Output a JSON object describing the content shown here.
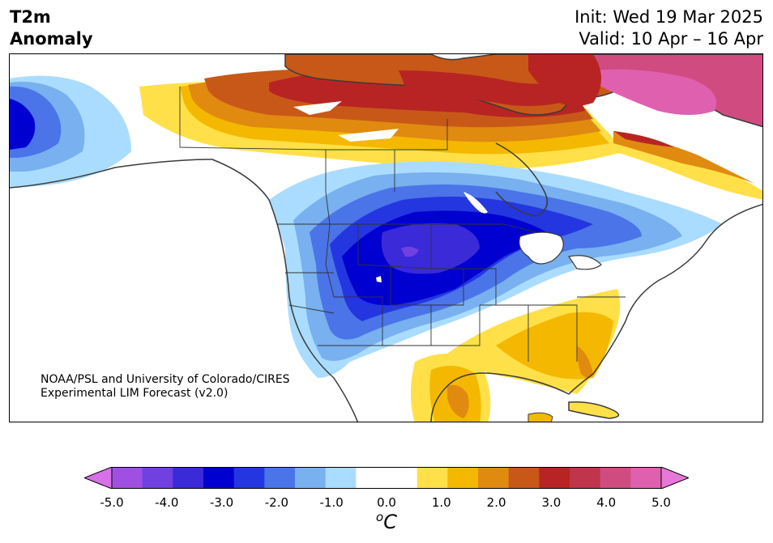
{
  "header": {
    "variable": "T2m",
    "product": "Anomaly",
    "init": "Init: Wed 19 Mar 2025",
    "valid": "Valid: 10 Apr – 16 Apr"
  },
  "credit": {
    "line1": "NOAA/PSL and University of Colorado/CIRES",
    "line2": "Experimental LIM Forecast (v2.0)"
  },
  "colorbar": {
    "ticks": [
      "-5.0",
      "-4.0",
      "-3.0",
      "-2.0",
      "-1.0",
      "0.0",
      "1.0",
      "2.0",
      "3.0",
      "4.0",
      "5.0"
    ],
    "unit_prefix": "o",
    "unit": "C",
    "min_color": "#d870e8",
    "max_color": "#e878d8",
    "colors": [
      "#a050e0",
      "#7040e0",
      "#3a2ad8",
      "#0000d0",
      "#2436e0",
      "#4a74e8",
      "#78b0f0",
      "#aadcff",
      "#ffffff",
      "#ffffff",
      "#ffe048",
      "#f4b800",
      "#e08a10",
      "#c85818",
      "#b82424",
      "#c0344c",
      "#d04c80",
      "#e060b0"
    ]
  },
  "map": {
    "region": "North America",
    "anomaly_regions": [
      {
        "area": "Northern Canada / Arctic",
        "value": "+2.5 to +3.5"
      },
      {
        "area": "Greenland",
        "value": "+3.5 to +4.0"
      },
      {
        "area": "Northern Plains / Rockies",
        "value": "-3.0 to -4.0"
      },
      {
        "area": "Southeast US / Mexico",
        "value": "+1.0 to +2.0"
      },
      {
        "area": "Alaska",
        "value": "-1.0 to -3.0"
      }
    ]
  }
}
